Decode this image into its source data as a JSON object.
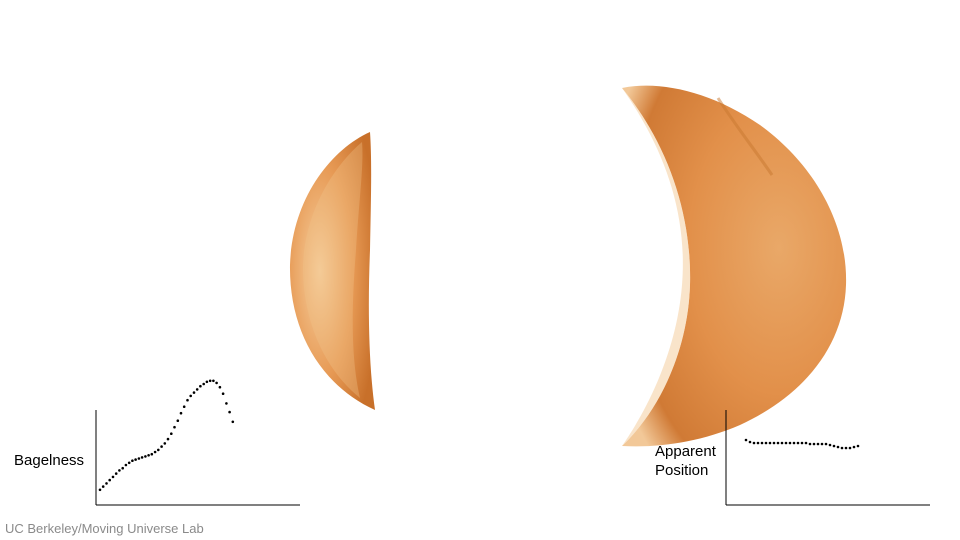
{
  "left_chart": {
    "ylabel": "Bagelness",
    "points": [
      [
        0.0,
        0.02
      ],
      [
        0.02,
        0.05
      ],
      [
        0.04,
        0.08
      ],
      [
        0.06,
        0.11
      ],
      [
        0.08,
        0.14
      ],
      [
        0.1,
        0.17
      ],
      [
        0.12,
        0.2
      ],
      [
        0.14,
        0.22
      ],
      [
        0.16,
        0.25
      ],
      [
        0.18,
        0.27
      ],
      [
        0.2,
        0.29
      ],
      [
        0.22,
        0.3
      ],
      [
        0.24,
        0.31
      ],
      [
        0.26,
        0.32
      ],
      [
        0.28,
        0.33
      ],
      [
        0.3,
        0.34
      ],
      [
        0.32,
        0.35
      ],
      [
        0.34,
        0.37
      ],
      [
        0.36,
        0.39
      ],
      [
        0.38,
        0.42
      ],
      [
        0.4,
        0.45
      ],
      [
        0.42,
        0.49
      ],
      [
        0.44,
        0.54
      ],
      [
        0.46,
        0.6
      ],
      [
        0.48,
        0.66
      ],
      [
        0.5,
        0.73
      ],
      [
        0.52,
        0.79
      ],
      [
        0.54,
        0.85
      ],
      [
        0.56,
        0.89
      ],
      [
        0.58,
        0.92
      ],
      [
        0.6,
        0.95
      ],
      [
        0.62,
        0.98
      ],
      [
        0.64,
        1.0
      ],
      [
        0.66,
        1.02
      ],
      [
        0.68,
        1.03
      ],
      [
        0.7,
        1.03
      ],
      [
        0.72,
        1.01
      ],
      [
        0.74,
        0.97
      ],
      [
        0.76,
        0.91
      ],
      [
        0.78,
        0.82
      ],
      [
        0.8,
        0.74
      ],
      [
        0.82,
        0.65
      ]
    ]
  },
  "right_chart": {
    "ylabel": "Apparent Position",
    "ylabel_lines": [
      "Apparent",
      "Position"
    ],
    "points": [
      [
        0.0,
        0.65
      ],
      [
        0.02,
        0.63
      ],
      [
        0.04,
        0.62
      ],
      [
        0.06,
        0.62
      ],
      [
        0.08,
        0.62
      ],
      [
        0.1,
        0.62
      ],
      [
        0.12,
        0.62
      ],
      [
        0.14,
        0.62
      ],
      [
        0.16,
        0.62
      ],
      [
        0.18,
        0.62
      ],
      [
        0.2,
        0.62
      ],
      [
        0.22,
        0.62
      ],
      [
        0.24,
        0.62
      ],
      [
        0.26,
        0.62
      ],
      [
        0.28,
        0.62
      ],
      [
        0.3,
        0.62
      ],
      [
        0.32,
        0.61
      ],
      [
        0.34,
        0.61
      ],
      [
        0.36,
        0.61
      ],
      [
        0.38,
        0.61
      ],
      [
        0.4,
        0.61
      ],
      [
        0.42,
        0.6
      ],
      [
        0.44,
        0.59
      ],
      [
        0.46,
        0.58
      ],
      [
        0.48,
        0.57
      ],
      [
        0.5,
        0.57
      ],
      [
        0.52,
        0.57
      ],
      [
        0.54,
        0.58
      ],
      [
        0.56,
        0.59
      ]
    ]
  },
  "credit": "UC Berkeley/Moving Universe Lab",
  "colors": {
    "bread_light": "#f3c690",
    "bread_mid": "#e2904a",
    "bread_dark": "#c8702a",
    "axis": "#000000",
    "credit_text": "#8a8a8a"
  }
}
